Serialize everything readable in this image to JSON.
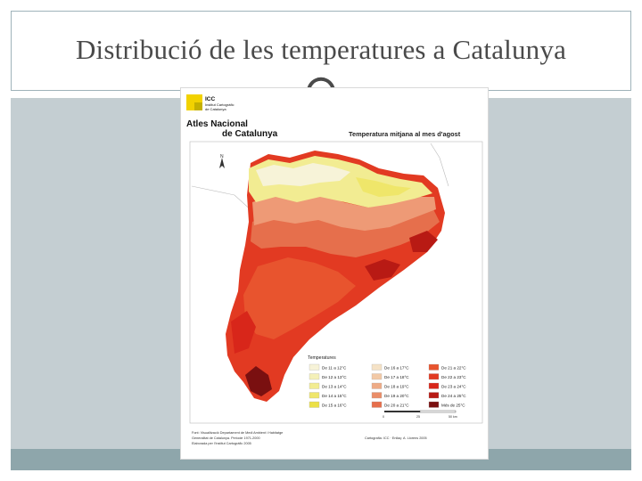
{
  "slide": {
    "title": "Distribució de les temperatures a Catalunya"
  },
  "figure": {
    "logo_text": "ICC",
    "logo_sub1": "Institut Cartogràfic",
    "logo_sub2": "de Catalunya",
    "atlas_title_line1": "Atles Nacional",
    "atlas_title_line2": "de Catalunya",
    "map_title": "Temperatura mitjana al mes d'agost",
    "north_label": "N",
    "legend_title": "Temperatures",
    "legend": [
      {
        "label": "De 11 a 12°C",
        "color": "#f7f3d8"
      },
      {
        "label": "De 12 a 13°C",
        "color": "#f4f0b8"
      },
      {
        "label": "De 13 a 14°C",
        "color": "#f2ec92"
      },
      {
        "label": "De 14 a 15°C",
        "color": "#efe66a"
      },
      {
        "label": "De 15 a 16°C",
        "color": "#ece046"
      },
      {
        "label": "De 16 a 17°C",
        "color": "#f5e2c6"
      },
      {
        "label": "De 17 a 18°C",
        "color": "#f2c9a6"
      },
      {
        "label": "De 18 a 19°C",
        "color": "#eeab86"
      },
      {
        "label": "De 19 a 20°C",
        "color": "#ea8d68"
      },
      {
        "label": "De 20 a 21°C",
        "color": "#e66f4c"
      },
      {
        "label": "De 21 a 22°C",
        "color": "#e8542e"
      },
      {
        "label": "De 22 a 23°C",
        "color": "#e23a22"
      },
      {
        "label": "De 23 a 24°C",
        "color": "#d8261a"
      },
      {
        "label": "De 24 a 25°C",
        "color": "#b81a14"
      },
      {
        "label": "Més de 25°C",
        "color": "#7a1010"
      }
    ],
    "scale_labels": [
      "0",
      "25",
      "50 km"
    ],
    "source_line1": "Font: Visualització Departament de Medi Ambient i Habitatge",
    "source_line2": "Generalitat de Catalunya. Període 1971-2000",
    "source_line3": "Elaborada per l'Institut Cartogràfic 2005",
    "credits": "Cartografia: ICC · Enllaç: A. Llorens 2005"
  }
}
